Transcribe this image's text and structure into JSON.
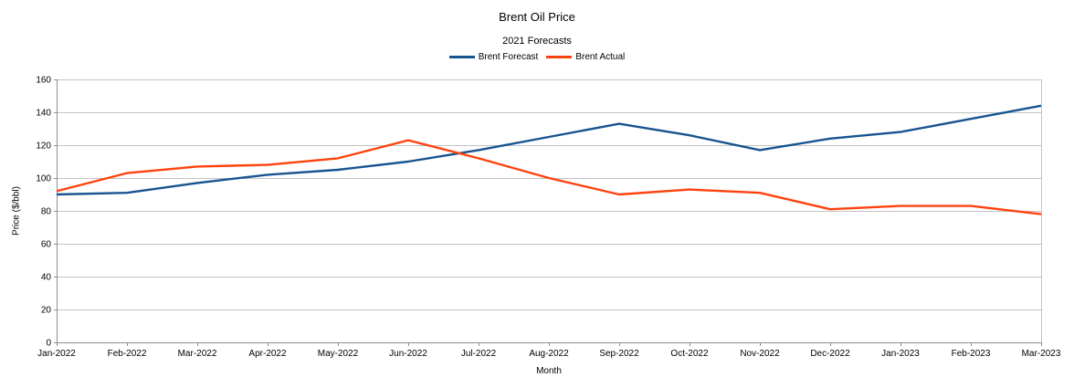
{
  "chart_data": {
    "type": "line",
    "title": "Brent Oil Price",
    "subtitle": "2021 Forecasts",
    "xlabel": "Month",
    "ylabel": "Price ($/bbl)",
    "ylim": [
      0,
      160
    ],
    "yticks": [
      0,
      20,
      40,
      60,
      80,
      100,
      120,
      140,
      160
    ],
    "grid": true,
    "legend_position": "top-center",
    "categories": [
      "Jan-2022",
      "Feb-2022",
      "Mar-2022",
      "Apr-2022",
      "May-2022",
      "Jun-2022",
      "Jul-2022",
      "Aug-2022",
      "Sep-2022",
      "Oct-2022",
      "Nov-2022",
      "Dec-2022",
      "Jan-2023",
      "Feb-2023",
      "Mar-2023"
    ],
    "series": [
      {
        "name": "Brent Forecast",
        "color": "#175490",
        "values": [
          90,
          91,
          97,
          102,
          105,
          110,
          117,
          125,
          133,
          126,
          117,
          124,
          128,
          136,
          144
        ]
      },
      {
        "name": "Brent Actual",
        "color": "#ff420e",
        "values": [
          92,
          103,
          107,
          108,
          112,
          123,
          112,
          100,
          90,
          93,
          91,
          81,
          83,
          83,
          78
        ]
      }
    ],
    "colors": {
      "grid": "#c2c2c2",
      "axis": "#8f8f8f",
      "text": "#000000"
    }
  }
}
